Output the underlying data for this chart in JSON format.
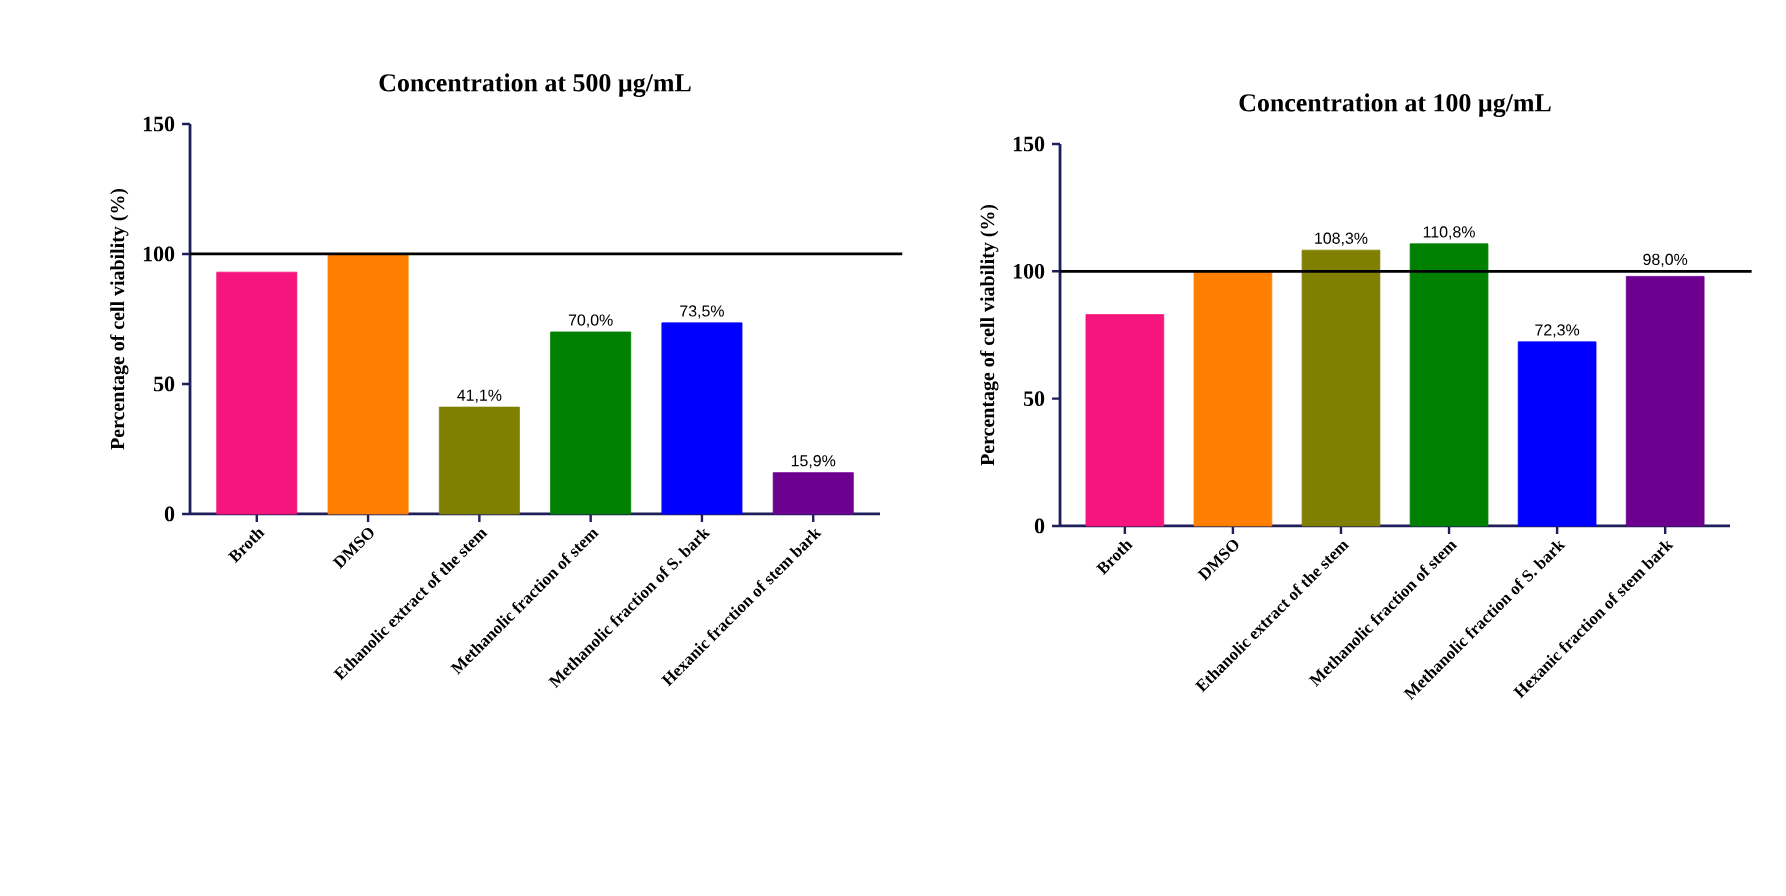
{
  "chart_data": [
    {
      "type": "bar",
      "title": "Concentration at 500 µg/mL",
      "ylabel": "Percentage of cell viability (%)",
      "categories": [
        "Broth",
        "DMSO",
        "Ethanolic extract of the stem",
        "Methanolic fraction of stem",
        "Methanolic fraction of S. bark",
        "Hexanic fraction of stem bark"
      ],
      "values": [
        93,
        100,
        41.1,
        70.0,
        73.5,
        15.9
      ],
      "value_labels": [
        null,
        null,
        "41,1%",
        "70,0%",
        "73,5%",
        "15,9%"
      ],
      "colors": [
        "#f5157d",
        "#ff8000",
        "#808000",
        "#008000",
        "#0000ff",
        "#6e0090"
      ],
      "ylim": [
        0,
        150
      ],
      "yticks": [
        0,
        50,
        100,
        150
      ],
      "ref_lines": [
        {
          "axis": "y",
          "value": 100,
          "color": "#000000"
        }
      ]
    },
    {
      "type": "bar",
      "title": "Concentration at 100 µg/mL",
      "ylabel": "Percentage of cell viability (%)",
      "categories": [
        "Broth",
        "DMSO",
        "Ethanolic extract of the stem",
        "Methanolic fraction of stem",
        "Methanolic fraction of S. bark",
        "Hexanic fraction of stem bark"
      ],
      "values": [
        83,
        100,
        108.3,
        110.8,
        72.3,
        98.0
      ],
      "value_labels": [
        null,
        null,
        "108,3%",
        "110,8%",
        "72,3%",
        "98,0%"
      ],
      "colors": [
        "#f5157d",
        "#ff8000",
        "#808000",
        "#008000",
        "#0000ff",
        "#6e0090"
      ],
      "ylim": [
        0,
        150
      ],
      "yticks": [
        0,
        50,
        100,
        150
      ],
      "ref_lines": [
        {
          "axis": "y",
          "value": 100,
          "color": "#000000"
        }
      ]
    }
  ]
}
